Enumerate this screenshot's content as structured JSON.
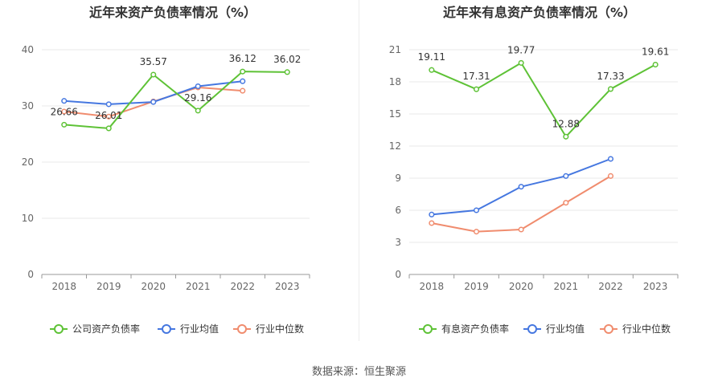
{
  "source": "数据来源：恒生聚源",
  "colors": {
    "green": "#5ec236",
    "blue": "#4577e0",
    "orange": "#f08c6e",
    "grid": "#e8e8e8",
    "axis": "#999999",
    "text": "#333333",
    "tick": "#666666"
  },
  "chart_data": [
    {
      "type": "line",
      "title": "近年来资产负债率情况（%）",
      "categories": [
        "2018",
        "2019",
        "2020",
        "2021",
        "2022",
        "2023"
      ],
      "ylim": [
        0,
        40
      ],
      "yticks": [
        0,
        10,
        20,
        30,
        40
      ],
      "grid": true,
      "legend_position": "bottom",
      "series": [
        {
          "name": "公司资产负债率",
          "color": "#5ec236",
          "labeled": true,
          "values": [
            26.66,
            26.01,
            35.57,
            29.16,
            36.12,
            36.02
          ]
        },
        {
          "name": "行业均值",
          "color": "#4577e0",
          "labeled": false,
          "values": [
            30.9,
            30.3,
            30.7,
            33.5,
            34.4,
            null
          ]
        },
        {
          "name": "行业中位数",
          "color": "#f08c6e",
          "labeled": false,
          "values": [
            29.0,
            28.1,
            30.8,
            33.3,
            32.7,
            null
          ]
        }
      ]
    },
    {
      "type": "line",
      "title": "近年来有息资产负债率情况（%）",
      "categories": [
        "2018",
        "2019",
        "2020",
        "2021",
        "2022",
        "2023"
      ],
      "ylim": [
        0,
        21
      ],
      "yticks": [
        0,
        3,
        6,
        9,
        12,
        15,
        18,
        21
      ],
      "grid": true,
      "legend_position": "bottom",
      "series": [
        {
          "name": "有息资产负债率",
          "color": "#5ec236",
          "labeled": true,
          "values": [
            19.11,
            17.31,
            19.77,
            12.88,
            17.33,
            19.61
          ]
        },
        {
          "name": "行业均值",
          "color": "#4577e0",
          "labeled": false,
          "values": [
            5.6,
            6.0,
            8.2,
            9.2,
            10.8,
            null
          ]
        },
        {
          "name": "行业中位数",
          "color": "#f08c6e",
          "labeled": false,
          "values": [
            4.8,
            4.0,
            4.2,
            6.7,
            9.2,
            null
          ]
        }
      ]
    }
  ]
}
